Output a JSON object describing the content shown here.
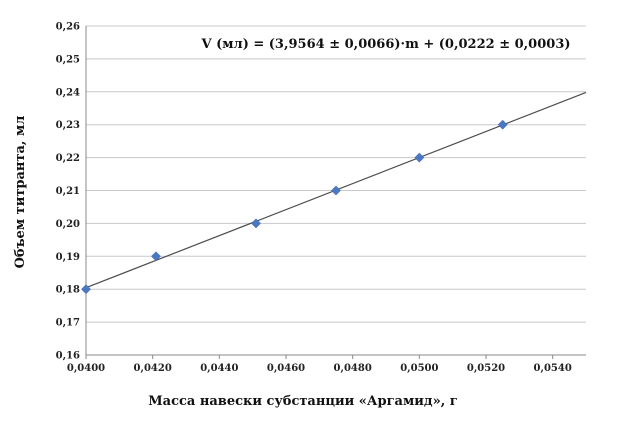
{
  "chart_data": {
    "type": "scatter",
    "title": "",
    "equation": "V (мл) = (3,9564 ± 0,0066)·m + (0,0222 ± 0,0003)",
    "xlabel": "Масса навески субстанции «Аргамид», г",
    "ylabel": "Объем титранта, мл",
    "xlim": [
      0.04,
      0.055
    ],
    "ylim": [
      0.16,
      0.26
    ],
    "x_ticks": [
      "0,0400",
      "0,0420",
      "0,0440",
      "0,0460",
      "0,0480",
      "0,0500",
      "0,0520",
      "0,0540"
    ],
    "y_ticks": [
      "0,16",
      "0,17",
      "0,18",
      "0,19",
      "0,20",
      "0,21",
      "0,22",
      "0,23",
      "0,24",
      "0,25",
      "0,26"
    ],
    "grid": "horizontal",
    "series": [
      {
        "x": [
          0.04,
          0.0421,
          0.0451,
          0.0475,
          0.05,
          0.0525
        ],
        "y": [
          0.18,
          0.19,
          0.2,
          0.21,
          0.22,
          0.23
        ]
      }
    ],
    "trendline": {
      "slope": 3.9564,
      "intercept": 0.0222
    },
    "colors": {
      "marker": "#4a78c2",
      "trendline": "#4d4d4d",
      "grid": "#c8c8c8"
    }
  }
}
